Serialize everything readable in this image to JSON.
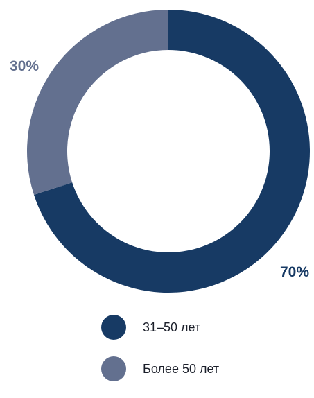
{
  "chart_data": {
    "type": "pie",
    "donut": true,
    "categories": [
      "31–50 лет",
      "Более 50 лет"
    ],
    "values": [
      70,
      30
    ],
    "data_labels": [
      "70%",
      "30%"
    ],
    "colors": [
      "#173A64",
      "#63708F"
    ],
    "label_colors": [
      "#173A64",
      "#63708F"
    ],
    "start_angle_deg": 0,
    "direction": "clockwise",
    "legend_position": "bottom",
    "title": ""
  }
}
